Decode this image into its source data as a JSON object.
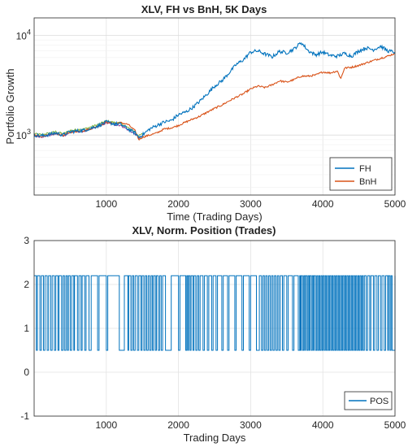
{
  "chart_data": [
    {
      "type": "line",
      "title": "XLV, FH vs BnH, 5K Days",
      "xlabel": "Time (Trading Days)",
      "ylabel": "Portfolio Growth",
      "xlim": [
        0,
        5000
      ],
      "ylim": [
        250,
        15000
      ],
      "yscale": "log",
      "grid": true,
      "legend_position": "bottom-right",
      "x_ticks": [
        1000,
        2000,
        3000,
        4000,
        5000
      ],
      "y_ticks": [
        {
          "value": 1000,
          "base": "10",
          "exp": "3"
        },
        {
          "value": 10000,
          "base": "10",
          "exp": "4"
        }
      ],
      "extra_colors": [
        "#77ac30",
        "#7e2f8e"
      ],
      "series": [
        {
          "name": "FH",
          "color": "#0072bd",
          "x": [
            0,
            100,
            200,
            300,
            400,
            500,
            600,
            700,
            800,
            900,
            1000,
            1100,
            1200,
            1300,
            1400,
            1450,
            1500,
            1600,
            1700,
            1800,
            1900,
            2000,
            2100,
            2200,
            2300,
            2400,
            2500,
            2600,
            2700,
            2800,
            2900,
            3000,
            3100,
            3200,
            3300,
            3400,
            3500,
            3600,
            3700,
            3800,
            3900,
            4000,
            4100,
            4200,
            4300,
            4400,
            4500,
            4600,
            4700,
            4800,
            4900,
            5000
          ],
          "values": [
            1000,
            980,
            1010,
            1050,
            1000,
            1080,
            1100,
            1120,
            1180,
            1250,
            1350,
            1300,
            1280,
            1150,
            1050,
            950,
            1000,
            1150,
            1250,
            1350,
            1400,
            1600,
            1700,
            1900,
            2200,
            2600,
            3100,
            3500,
            4200,
            5100,
            5700,
            6800,
            7000,
            6500,
            6100,
            6900,
            6700,
            7300,
            8500,
            7000,
            6400,
            6800,
            6300,
            6200,
            6600,
            6200,
            7000,
            7500,
            7200,
            7800,
            7000,
            6800
          ]
        },
        {
          "name": "BnH",
          "color": "#d95319",
          "x": [
            0,
            100,
            200,
            300,
            400,
            500,
            600,
            700,
            800,
            900,
            1000,
            1100,
            1200,
            1300,
            1400,
            1450,
            1500,
            1600,
            1700,
            1800,
            1900,
            2000,
            2100,
            2200,
            2300,
            2400,
            2500,
            2600,
            2700,
            2800,
            2900,
            3000,
            3100,
            3200,
            3300,
            3400,
            3500,
            3600,
            3700,
            3800,
            3900,
            4000,
            4100,
            4200,
            4250,
            4300,
            4400,
            4500,
            4600,
            4700,
            4800,
            4900,
            5000
          ],
          "values": [
            1000,
            970,
            1000,
            1040,
            990,
            1070,
            1090,
            1110,
            1170,
            1240,
            1350,
            1300,
            1330,
            1280,
            1100,
            900,
            950,
            1000,
            1050,
            1150,
            1180,
            1250,
            1350,
            1450,
            1550,
            1700,
            1850,
            2000,
            2200,
            2400,
            2600,
            2900,
            3100,
            3000,
            3200,
            3500,
            3400,
            3600,
            3900,
            3900,
            4000,
            4300,
            4200,
            4400,
            3700,
            4700,
            4800,
            5000,
            5300,
            5600,
            5900,
            6200,
            6600
          ]
        }
      ]
    },
    {
      "type": "line",
      "step": true,
      "title": "XLV, Norm. Position (Trades)",
      "xlabel": "Trading Days",
      "ylabel": "",
      "xlim": [
        0,
        5000
      ],
      "ylim": [
        -1,
        3
      ],
      "grid": true,
      "legend_position": "bottom-right",
      "x_ticks": [
        1000,
        2000,
        3000,
        4000,
        5000
      ],
      "y_ticks": [
        -1,
        0,
        1,
        2,
        3
      ],
      "levels": [
        0.5,
        2.2
      ],
      "series": [
        {
          "name": "POS",
          "color": "#0072bd",
          "values": [
            2.2,
            0.5
          ],
          "low_segments": [
            [
              30,
              45
            ],
            [
              80,
              100
            ],
            [
              130,
              150
            ],
            [
              180,
              200
            ],
            [
              230,
              250
            ],
            [
              280,
              300
            ],
            [
              330,
              345
            ],
            [
              380,
              400
            ],
            [
              420,
              440
            ],
            [
              460,
              475
            ],
            [
              500,
              520
            ],
            [
              550,
              560
            ],
            [
              600,
              620
            ],
            [
              650,
              665
            ],
            [
              700,
              720
            ],
            [
              760,
              790
            ],
            [
              880,
              900
            ],
            [
              1000,
              1020
            ],
            [
              1180,
              1250
            ],
            [
              1300,
              1310
            ],
            [
              1340,
              1360
            ],
            [
              1380,
              1400
            ],
            [
              1430,
              1450
            ],
            [
              1480,
              1495
            ],
            [
              1520,
              1540
            ],
            [
              1560,
              1580
            ],
            [
              1600,
              1620
            ],
            [
              1640,
              1655
            ],
            [
              1680,
              1695
            ],
            [
              1720,
              1740
            ],
            [
              1760,
              1780
            ],
            [
              1820,
              1900
            ],
            [
              2000,
              2020
            ],
            [
              2100,
              2115
            ],
            [
              2130,
              2140
            ],
            [
              2160,
              2175
            ],
            [
              2200,
              2215
            ],
            [
              2240,
              2260
            ],
            [
              2280,
              2300
            ],
            [
              2340,
              2360
            ],
            [
              2400,
              2420
            ],
            [
              2460,
              2480
            ],
            [
              2520,
              2540
            ],
            [
              2600,
              2620
            ],
            [
              2680,
              2700
            ],
            [
              2780,
              2800
            ],
            [
              2880,
              2900
            ],
            [
              2980,
              3000
            ],
            [
              3080,
              3120
            ],
            [
              3150,
              3170
            ],
            [
              3190,
              3210
            ],
            [
              3230,
              3250
            ],
            [
              3270,
              3290
            ],
            [
              3310,
              3330
            ],
            [
              3350,
              3370
            ],
            [
              3390,
              3410
            ],
            [
              3440,
              3460
            ],
            [
              3500,
              3520
            ],
            [
              3580,
              3600
            ],
            [
              3660,
              3680
            ],
            [
              3690,
              3700
            ],
            [
              3720,
              3735
            ],
            [
              3750,
              3760
            ],
            [
              3780,
              3795
            ],
            [
              3810,
              3820
            ],
            [
              3840,
              3855
            ],
            [
              3870,
              3880
            ],
            [
              3900,
              3915
            ],
            [
              3930,
              3945
            ],
            [
              3960,
              3975
            ],
            [
              3990,
              4005
            ],
            [
              4020,
              4035
            ],
            [
              4050,
              4065
            ],
            [
              4080,
              4095
            ],
            [
              4110,
              4125
            ],
            [
              4140,
              4155
            ],
            [
              4170,
              4185
            ],
            [
              4200,
              4215
            ],
            [
              4230,
              4245
            ],
            [
              4260,
              4275
            ],
            [
              4290,
              4305
            ],
            [
              4320,
              4335
            ],
            [
              4350,
              4365
            ],
            [
              4380,
              4395
            ],
            [
              4410,
              4425
            ],
            [
              4440,
              4455
            ],
            [
              4470,
              4485
            ],
            [
              4500,
              4515
            ],
            [
              4530,
              4545
            ],
            [
              4560,
              4575
            ],
            [
              4600,
              4620
            ],
            [
              4650,
              4665
            ],
            [
              4700,
              4720
            ],
            [
              4750,
              4770
            ],
            [
              4800,
              4820
            ],
            [
              4850,
              4870
            ],
            [
              4900,
              4910
            ],
            [
              4930,
              4945
            ],
            [
              4960,
              5000
            ]
          ]
        }
      ]
    }
  ]
}
